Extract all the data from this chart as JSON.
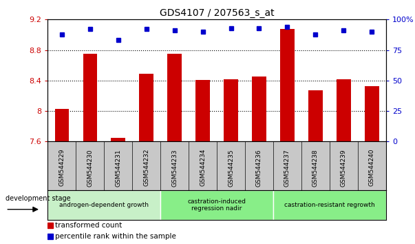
{
  "title": "GDS4107 / 207563_s_at",
  "samples": [
    "GSM544229",
    "GSM544230",
    "GSM544231",
    "GSM544232",
    "GSM544233",
    "GSM544234",
    "GSM544235",
    "GSM544236",
    "GSM544237",
    "GSM544238",
    "GSM544239",
    "GSM544240"
  ],
  "bar_values": [
    8.03,
    8.75,
    7.65,
    8.49,
    8.75,
    8.41,
    8.42,
    8.45,
    9.08,
    8.27,
    8.42,
    8.33
  ],
  "dot_values": [
    88,
    92,
    83,
    92,
    91,
    90,
    93,
    93,
    94,
    88,
    91,
    90
  ],
  "bar_color": "#cc0000",
  "dot_color": "#0000cc",
  "ylim_left": [
    7.6,
    9.2
  ],
  "ylim_right": [
    0,
    100
  ],
  "yticks_left": [
    7.6,
    8.0,
    8.4,
    8.8,
    9.2
  ],
  "yticks_right": [
    0,
    25,
    50,
    75,
    100
  ],
  "ytick_labels_left": [
    "7.6",
    "8",
    "8.4",
    "8.8",
    "9.2"
  ],
  "ytick_labels_right": [
    "0",
    "25",
    "50",
    "75",
    "100%"
  ],
  "grid_values": [
    8.0,
    8.4,
    8.8
  ],
  "group_definitions": [
    {
      "label": "androgen-dependent growth",
      "start": 0,
      "end": 4,
      "color": "#c8f0c8"
    },
    {
      "label": "castration-induced\nregression nadir",
      "start": 4,
      "end": 8,
      "color": "#88ee88"
    },
    {
      "label": "castration-resistant regrowth",
      "start": 8,
      "end": 12,
      "color": "#88ee88"
    }
  ],
  "xtick_bg_color": "#c8c8c8",
  "legend_bar_label": "transformed count",
  "legend_dot_label": "percentile rank within the sample",
  "plot_bg_color": "#ffffff",
  "dev_stage_label": "development stage"
}
